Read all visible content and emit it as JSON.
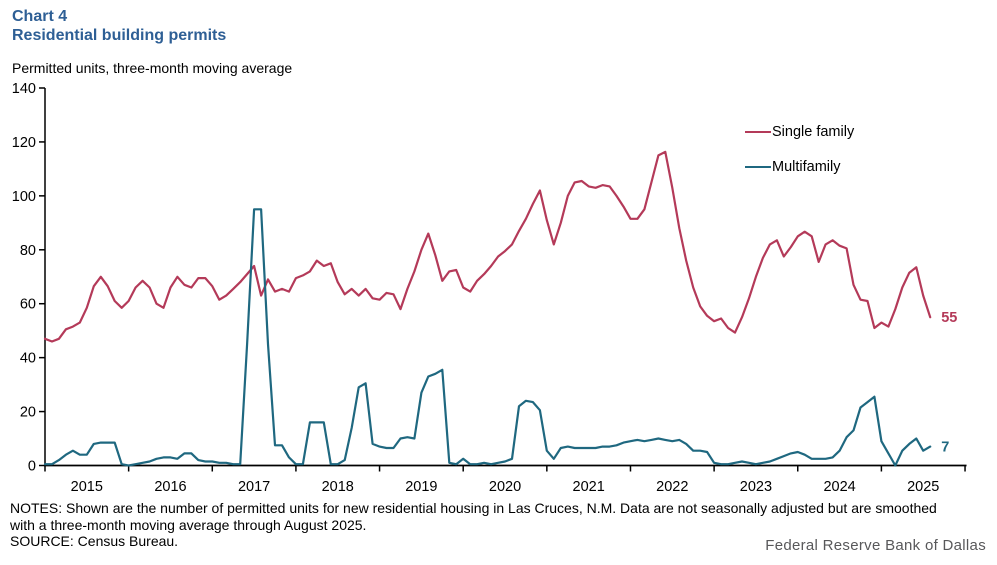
{
  "header": {
    "chart_label": "Chart 4",
    "title": "Residential building permits",
    "subtitle": "Permitted units, three-month moving average",
    "title_color": "#2e5f95"
  },
  "legend": [
    {
      "label": "Single family",
      "color": "#b43a59"
    },
    {
      "label": "Multifamily",
      "color": "#1f6880"
    }
  ],
  "end_labels": [
    {
      "text": "55",
      "color": "#b43a59"
    },
    {
      "text": "7",
      "color": "#1f6880"
    }
  ],
  "notes": {
    "line1": "NOTES: Shown are the number of permitted units for new residential housing in Las Cruces, N.M. Data are not seasonally adjusted but are smoothed",
    "line2": "with a three-month moving average through August 2025.",
    "line3": "SOURCE: Census Bureau."
  },
  "branding": "Federal Reserve Bank of Dallas",
  "branding_color": "#58585a",
  "chart_data": {
    "type": "line",
    "title": "Residential building permits",
    "ylabel": "Permitted units, three-month moving average",
    "xlabel": "",
    "frequency": "monthly",
    "x_start": "2015-01",
    "x_end": "2025-08",
    "ylim": [
      0,
      140
    ],
    "y_ticks": [
      0,
      20,
      40,
      60,
      80,
      100,
      120,
      140
    ],
    "x_tick_years": [
      2015,
      2016,
      2017,
      2018,
      2019,
      2020,
      2021,
      2022,
      2023,
      2024,
      2025,
      2026
    ],
    "x_label_years": [
      2015,
      2016,
      2017,
      2018,
      2019,
      2020,
      2021,
      2022,
      2023,
      2024,
      2025
    ],
    "grid": false,
    "legend_position": "top-right",
    "axis_color": "#000000",
    "series": [
      {
        "name": "Single family",
        "color": "#b43a59",
        "last_value_label": 55,
        "values": [
          47,
          46,
          47,
          50.5,
          51.5,
          53,
          58.5,
          66.5,
          70,
          66.5,
          61,
          58.5,
          61,
          66,
          68.5,
          66,
          60,
          58.5,
          66,
          70,
          67,
          66,
          69.5,
          69.5,
          66.5,
          61.5,
          63,
          65.5,
          68,
          71,
          74,
          63,
          69,
          64.5,
          65.5,
          64.5,
          69.5,
          70.5,
          72,
          76,
          74,
          75,
          68,
          63.5,
          65.5,
          63,
          65.5,
          62,
          61.5,
          64,
          63.5,
          58,
          65.5,
          72,
          80,
          86,
          78,
          68.5,
          72,
          72.5,
          66,
          64.5,
          68.5,
          71,
          74,
          77.5,
          79.5,
          82,
          87,
          91.5,
          97,
          102,
          91,
          82,
          90,
          100,
          105,
          105.5,
          103.5,
          103,
          104,
          103.5,
          100,
          96,
          91.5,
          91.5,
          95,
          105,
          115,
          116.3,
          103,
          88,
          76,
          66,
          59,
          55.5,
          53.5,
          54.5,
          51,
          49.3,
          55,
          62,
          70,
          77,
          82,
          83.5,
          77.5,
          81,
          85,
          86.7,
          85,
          75.5,
          82,
          83.5,
          81.5,
          80.5,
          67,
          61.5,
          61,
          51,
          53,
          51.5,
          58,
          66,
          71.5,
          73.5,
          63,
          55
        ]
      },
      {
        "name": "Multifamily",
        "color": "#1f6880",
        "last_value_label": 7,
        "values": [
          0.5,
          0.5,
          2,
          4,
          5.5,
          4,
          4,
          8,
          8.5,
          8.5,
          8.5,
          0.5,
          0,
          0.5,
          1,
          1.5,
          2.5,
          3,
          3,
          2.5,
          4.5,
          4.5,
          2,
          1.5,
          1.5,
          1,
          1,
          0.5,
          0.5,
          45,
          95,
          95,
          45,
          7.5,
          7.5,
          3,
          0.5,
          0.5,
          16,
          16,
          16,
          0.5,
          0.5,
          2,
          14,
          29,
          30.5,
          8,
          7,
          6.5,
          6.5,
          10,
          10.5,
          10,
          27,
          33,
          34,
          35.5,
          1,
          0.5,
          2.5,
          0.5,
          0.5,
          1,
          0.5,
          1,
          1.5,
          2.5,
          22,
          24,
          23.5,
          20.5,
          5.5,
          2.5,
          6.5,
          7,
          6.5,
          6.5,
          6.5,
          6.5,
          7,
          7,
          7.5,
          8.5,
          9,
          9.5,
          9,
          9.5,
          10,
          9.5,
          9,
          9.5,
          8,
          5.5,
          5.5,
          5,
          1,
          0.5,
          0.5,
          1,
          1.5,
          1,
          0.5,
          1,
          1.5,
          2.5,
          3.5,
          4.5,
          5,
          4,
          2.5,
          2.5,
          2.5,
          3,
          5.5,
          10.5,
          13,
          21.5,
          23.5,
          25.5,
          9,
          4.5,
          0,
          5.5,
          8,
          10,
          5.5,
          7
        ]
      }
    ]
  }
}
